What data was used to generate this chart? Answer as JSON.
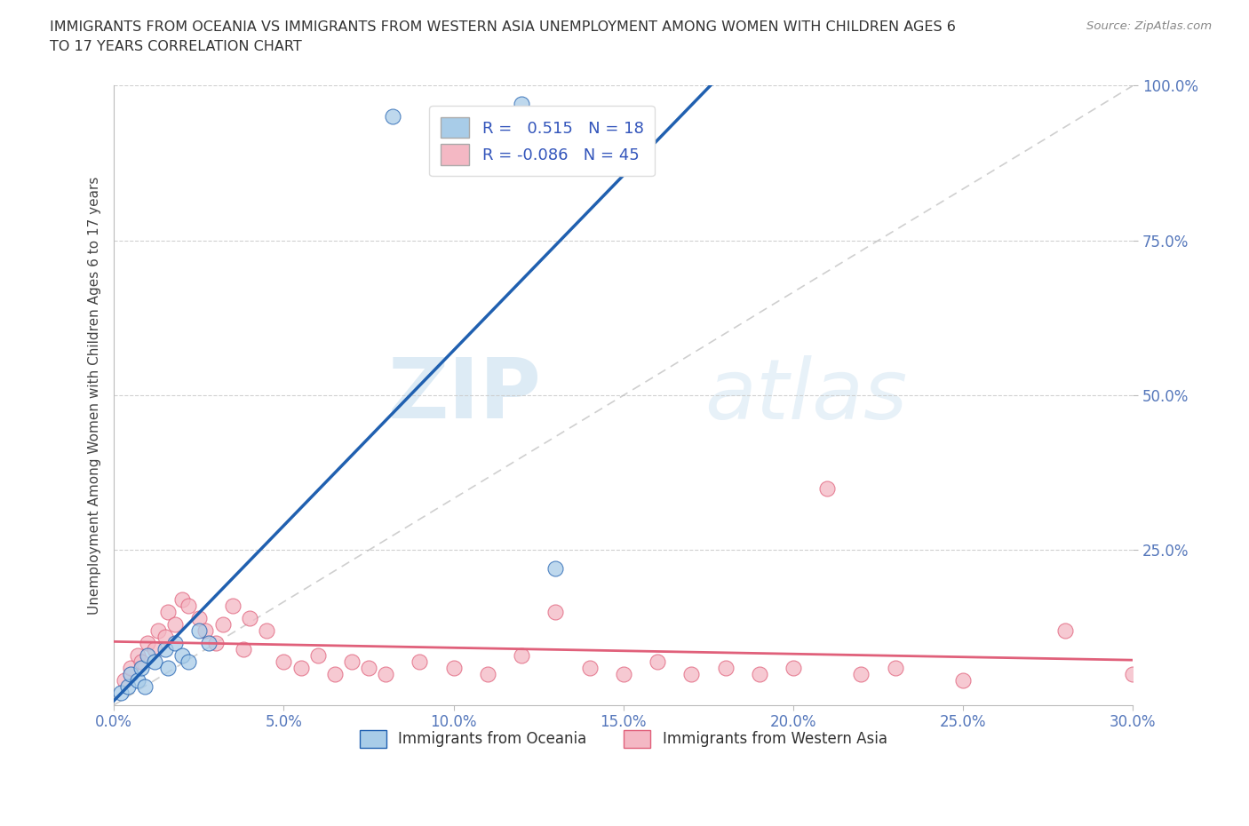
{
  "title_line1": "IMMIGRANTS FROM OCEANIA VS IMMIGRANTS FROM WESTERN ASIA UNEMPLOYMENT AMONG WOMEN WITH CHILDREN AGES 6",
  "title_line2": "TO 17 YEARS CORRELATION CHART",
  "source": "Source: ZipAtlas.com",
  "ylabel": "Unemployment Among Women with Children Ages 6 to 17 years",
  "xlim": [
    0.0,
    0.3
  ],
  "ylim": [
    0.0,
    1.0
  ],
  "xticks": [
    0.0,
    0.05,
    0.1,
    0.15,
    0.2,
    0.25,
    0.3
  ],
  "xticklabels": [
    "0.0%",
    "5.0%",
    "10.0%",
    "15.0%",
    "20.0%",
    "25.0%",
    "30.0%"
  ],
  "yticks": [
    0.25,
    0.5,
    0.75,
    1.0
  ],
  "yticklabels": [
    "25.0%",
    "50.0%",
    "75.0%",
    "100.0%"
  ],
  "legend1_label": "Immigrants from Oceania",
  "legend2_label": "Immigrants from Western Asia",
  "R_oceania": 0.515,
  "N_oceania": 18,
  "R_western_asia": -0.086,
  "N_western_asia": 45,
  "color_oceania": "#A8CCE8",
  "color_western_asia": "#F4B8C4",
  "color_oceania_line": "#2060B0",
  "color_western_asia_line": "#E0607A",
  "color_diag": "#BBBBBB",
  "watermark_zip": "ZIP",
  "watermark_atlas": "atlas",
  "oceania_x": [
    0.002,
    0.004,
    0.005,
    0.007,
    0.008,
    0.009,
    0.01,
    0.012,
    0.015,
    0.016,
    0.018,
    0.02,
    0.022,
    0.025,
    0.028,
    0.082,
    0.12,
    0.13
  ],
  "oceania_y": [
    0.02,
    0.03,
    0.05,
    0.04,
    0.06,
    0.03,
    0.08,
    0.07,
    0.09,
    0.06,
    0.1,
    0.08,
    0.07,
    0.12,
    0.1,
    0.95,
    0.97,
    0.22
  ],
  "western_asia_x": [
    0.003,
    0.005,
    0.007,
    0.008,
    0.01,
    0.012,
    0.013,
    0.015,
    0.016,
    0.018,
    0.02,
    0.022,
    0.025,
    0.027,
    0.03,
    0.032,
    0.035,
    0.038,
    0.04,
    0.045,
    0.05,
    0.055,
    0.06,
    0.065,
    0.07,
    0.075,
    0.08,
    0.09,
    0.1,
    0.11,
    0.12,
    0.13,
    0.14,
    0.15,
    0.16,
    0.17,
    0.18,
    0.19,
    0.2,
    0.21,
    0.22,
    0.23,
    0.25,
    0.28,
    0.3
  ],
  "western_asia_y": [
    0.04,
    0.06,
    0.08,
    0.07,
    0.1,
    0.09,
    0.12,
    0.11,
    0.15,
    0.13,
    0.17,
    0.16,
    0.14,
    0.12,
    0.1,
    0.13,
    0.16,
    0.09,
    0.14,
    0.12,
    0.07,
    0.06,
    0.08,
    0.05,
    0.07,
    0.06,
    0.05,
    0.07,
    0.06,
    0.05,
    0.08,
    0.15,
    0.06,
    0.05,
    0.07,
    0.05,
    0.06,
    0.05,
    0.06,
    0.35,
    0.05,
    0.06,
    0.04,
    0.12,
    0.05
  ]
}
